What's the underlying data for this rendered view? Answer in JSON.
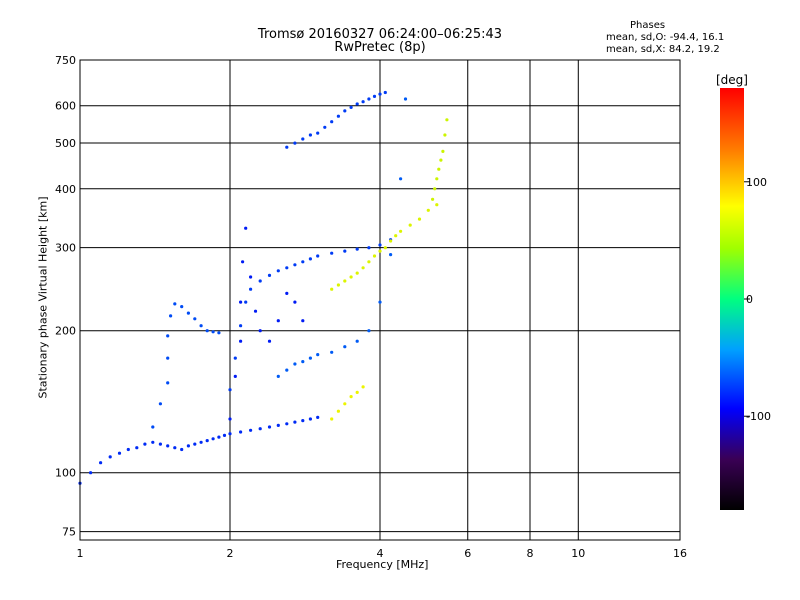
{
  "header": {
    "title_line1": "Tromsø 20160327 06:24:00–06:25:43",
    "title_line2": "RwPretec (8p)",
    "stats_title": "Phases",
    "stats_o": "mean, sd,O: -94.4, 16.1",
    "stats_x": "mean, sd,X:  84.2, 19.2"
  },
  "chart_data": {
    "type": "scatter",
    "xlabel": "Frequency [MHz]",
    "ylabel": "Stationary phase Virtual Height [km]",
    "x_scale": "log2",
    "y_scale": "log",
    "xlim": [
      1,
      16
    ],
    "ylim": [
      72,
      750
    ],
    "x_ticks": [
      1,
      2,
      4,
      6,
      8,
      10,
      16
    ],
    "y_ticks": [
      75,
      100,
      200,
      300,
      400,
      500,
      600,
      750
    ],
    "grid": true,
    "colorbar": {
      "label": "[deg]",
      "range": [
        -180,
        180
      ],
      "ticks": [
        100,
        0,
        -100
      ]
    },
    "series": [
      {
        "phase": -115,
        "x": [
          1.0,
          1.05,
          1.1,
          1.15,
          1.2,
          1.25,
          1.3,
          1.35,
          1.4,
          1.45,
          1.5,
          1.55,
          1.6,
          1.65,
          1.7,
          1.75,
          1.8,
          1.85,
          1.9,
          1.95,
          2.0,
          2.1,
          2.2,
          2.3,
          2.4,
          2.5,
          2.6,
          2.7,
          2.8,
          2.9,
          3.0
        ],
        "y": [
          95,
          100,
          105,
          108,
          110,
          112,
          113,
          115,
          116,
          115,
          114,
          113,
          112,
          114,
          115,
          116,
          117,
          118,
          119,
          120,
          121,
          122,
          123,
          124,
          125,
          126,
          127,
          128,
          129,
          130,
          131
        ]
      },
      {
        "phase": -105,
        "x": [
          1.4,
          1.45,
          1.5,
          1.5,
          1.5,
          1.52,
          1.55,
          1.6,
          1.65,
          1.7,
          1.75,
          1.8,
          1.85,
          1.9
        ],
        "y": [
          125,
          140,
          155,
          175,
          195,
          215,
          228,
          225,
          218,
          212,
          205,
          200,
          199,
          198
        ]
      },
      {
        "phase": -110,
        "x": [
          2.0,
          2.05,
          2.1,
          2.15,
          2.2,
          2.3,
          2.4,
          2.5,
          2.6,
          2.7,
          2.8,
          2.9,
          3.0,
          3.2,
          3.4,
          3.6,
          3.8,
          4.0,
          4.2
        ],
        "y": [
          150,
          175,
          205,
          230,
          245,
          255,
          262,
          268,
          272,
          276,
          280,
          284,
          288,
          292,
          295,
          298,
          300,
          304,
          312
        ]
      },
      {
        "phase": -120,
        "x": [
          2.0,
          2.05,
          2.1,
          2.1,
          2.12,
          2.15,
          2.2,
          2.25,
          2.3,
          2.4,
          2.5,
          2.6,
          2.7,
          2.8
        ],
        "y": [
          130,
          160,
          190,
          230,
          280,
          330,
          260,
          220,
          200,
          190,
          210,
          240,
          230,
          210
        ]
      },
      {
        "phase": -100,
        "x": [
          2.5,
          2.6,
          2.7,
          2.8,
          2.9,
          3.0,
          3.2,
          3.4,
          3.6,
          3.8,
          4.0,
          4.2,
          4.4,
          4.5
        ],
        "y": [
          160,
          165,
          170,
          172,
          175,
          178,
          180,
          185,
          190,
          200,
          230,
          290,
          420,
          620
        ]
      },
      {
        "phase": -110,
        "x": [
          2.6,
          2.7,
          2.8,
          2.9,
          3.0,
          3.1,
          3.2,
          3.3,
          3.4,
          3.5,
          3.6,
          3.7,
          3.8,
          3.9,
          4.0,
          4.1
        ],
        "y": [
          490,
          500,
          510,
          520,
          525,
          540,
          555,
          570,
          585,
          595,
          605,
          612,
          620,
          628,
          635,
          640
        ]
      },
      {
        "phase": 95,
        "x": [
          3.2,
          3.3,
          3.4,
          3.5,
          3.6,
          3.7,
          3.8,
          3.9,
          4.0,
          4.1,
          4.2,
          4.3,
          4.4,
          4.6,
          4.8,
          5.0,
          5.2
        ],
        "y": [
          245,
          250,
          255,
          260,
          265,
          272,
          280,
          288,
          295,
          300,
          310,
          318,
          325,
          335,
          345,
          360,
          370
        ]
      },
      {
        "phase": 90,
        "x": [
          5.1,
          5.15,
          5.2,
          5.25,
          5.3,
          5.35,
          5.4,
          5.45
        ],
        "y": [
          380,
          400,
          420,
          440,
          460,
          480,
          520,
          560
        ]
      },
      {
        "phase": 100,
        "x": [
          3.2,
          3.3,
          3.4,
          3.5,
          3.6,
          3.7
        ],
        "y": [
          130,
          135,
          140,
          145,
          148,
          152
        ]
      }
    ]
  }
}
